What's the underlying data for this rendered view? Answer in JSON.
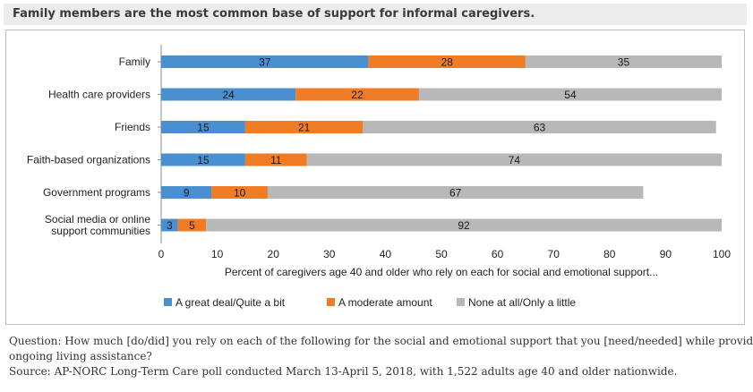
{
  "title": "Family members are the most common base of support for informal caregivers.",
  "chart_data": {
    "type": "bar",
    "orientation": "horizontal",
    "stacked": true,
    "categories": [
      [
        "Family"
      ],
      [
        "Health care providers"
      ],
      [
        "Friends"
      ],
      [
        "Faith-based organizations"
      ],
      [
        "Government programs"
      ],
      [
        "Social media or online",
        "support communities"
      ]
    ],
    "series": [
      {
        "name": "A great deal/Quite a bit",
        "color": "#4a90d0",
        "values": [
          37,
          24,
          15,
          15,
          9,
          3
        ]
      },
      {
        "name": "A moderate amount",
        "color": "#f07c26",
        "values": [
          28,
          22,
          21,
          11,
          10,
          5
        ]
      },
      {
        "name": "None at all/Only a little",
        "color": "#b8b8b8",
        "values": [
          35,
          54,
          63,
          74,
          67,
          92
        ]
      }
    ],
    "xlabel": "Percent of caregivers age 40 and older who rely on each for social and emotional support...",
    "xlim": [
      0,
      100
    ],
    "xticks": [
      0,
      10,
      20,
      30,
      40,
      50,
      60,
      70,
      80,
      90,
      100
    ],
    "grid": false,
    "legend_position": "bottom"
  },
  "footnote": {
    "question_line1": "Question: How much [do/did] you rely on each of the following for the social and emotional support that you [need/needed] while providing",
    "question_line2": "ongoing living assistance?",
    "source": "Source: AP-NORC Long-Term Care poll conducted March 13-April 5, 2018, with 1,522 adults age 40 and older nationwide."
  }
}
